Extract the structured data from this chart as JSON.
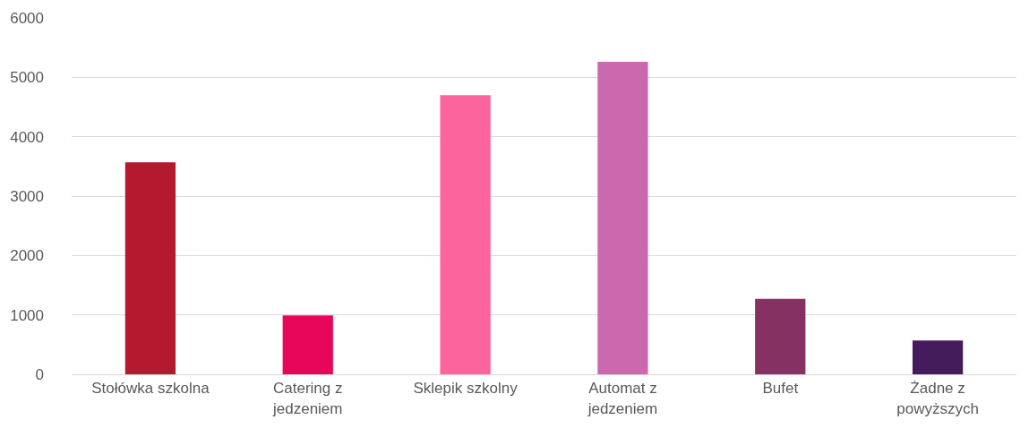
{
  "chart_data": {
    "type": "bar",
    "categories": [
      "Stołówka szkolna",
      "Catering z jedzeniem",
      "Sklepik szkolny",
      "Automat z jedzeniem",
      "Bufet",
      "Żadne z powyższych"
    ],
    "values": [
      3570,
      990,
      4700,
      5260,
      1270,
      570
    ],
    "colors": [
      "#b5192f",
      "#e8065a",
      "#fb649c",
      "#cc68ae",
      "#853263",
      "#441b5b"
    ],
    "ylim": [
      0,
      6000
    ],
    "yticks": [
      0,
      1000,
      2000,
      3000,
      4000,
      5000,
      6000
    ],
    "grid": "y"
  }
}
